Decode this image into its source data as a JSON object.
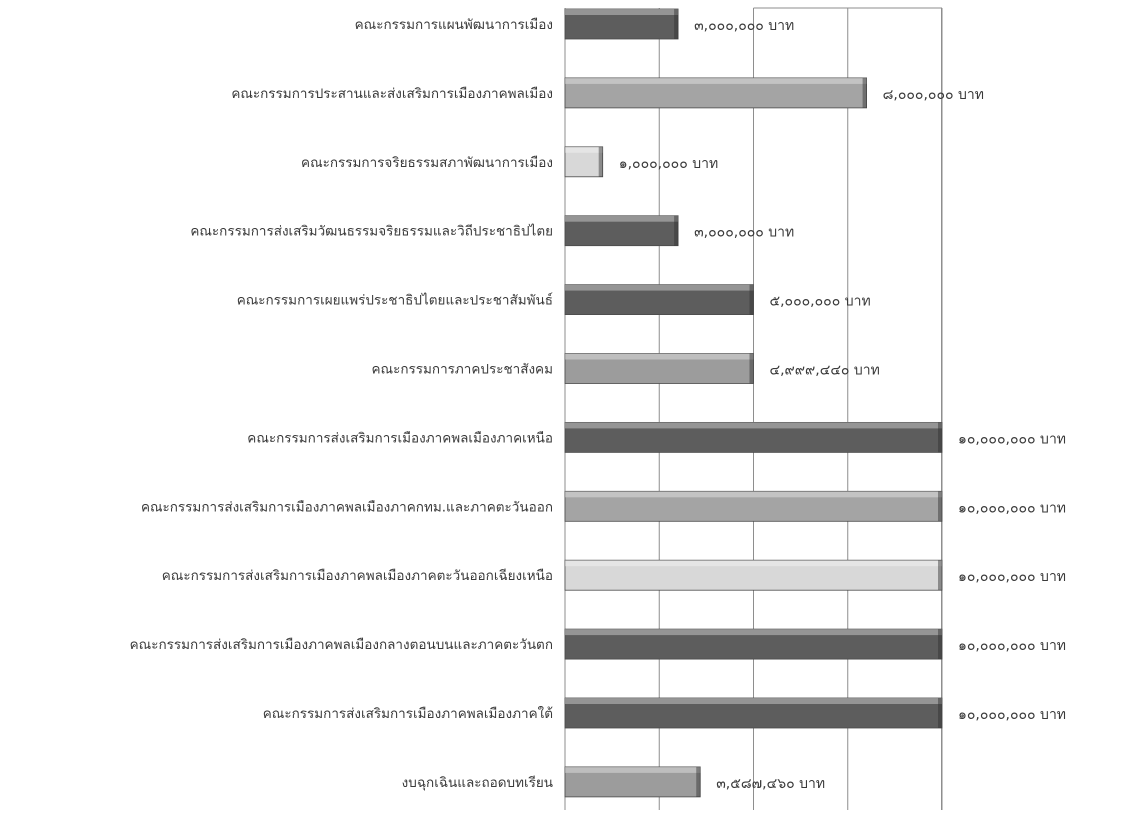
{
  "chart_data": {
    "type": "bar",
    "orientation": "horizontal",
    "title": "",
    "xlabel": "",
    "ylabel": "",
    "xlim": [
      0,
      10000000
    ],
    "grid": true,
    "legend": "none",
    "categories": [
      "คณะกรรมการแผนพัฒนาการเมือง",
      "คณะกรรมการประสานและส่งเสริมการเมืองภาคพลเมือง",
      "คณะกรรมการจริยธรรมสภาพัฒนาการเมือง",
      "คณะกรรมการส่งเสริมวัฒนธรรมจริยธรรมและวิถีประชาธิปไตย",
      "คณะกรรมการเผยแพร่ประชาธิปไตยและประชาสัมพันธ์",
      "คณะกรรมการภาคประชาสังคม",
      "คณะกรรมการส่งเสริมการเมืองภาคพลเมืองภาคเหนือ",
      "คณะกรรมการส่งเสริมการเมืองภาคพลเมืองภาคกทม.และภาคตะวันออก",
      "คณะกรรมการส่งเสริมการเมืองภาคพลเมืองภาคตะวันออกเฉียงเหนือ",
      "คณะกรรมการส่งเสริมการเมืองภาคพลเมืองกลางตอนบนและภาคตะวันตก",
      "คณะกรรมการส่งเสริมการเมืองภาคพลเมืองภาคใต้",
      "งบฉุกเฉินและถอดบทเรียน"
    ],
    "values": [
      3000000,
      8000000,
      1000000,
      3000000,
      5000000,
      4999440,
      10000000,
      10000000,
      10000000,
      10000000,
      10000000,
      3587460
    ],
    "value_labels": [
      "๓,๐๐๐,๐๐๐ บาท",
      "๘,๐๐๐,๐๐๐ บาท",
      "๑,๐๐๐,๐๐๐ บาท",
      "๓,๐๐๐,๐๐๐ บาท",
      "๕,๐๐๐,๐๐๐ บาท",
      "๔,๙๙๙,๔๔๐ บาท",
      "๑๐,๐๐๐,๐๐๐ บาท",
      "๑๐,๐๐๐,๐๐๐ บาท",
      "๑๐,๐๐๐,๐๐๐ บาท",
      "๑๐,๐๐๐,๐๐๐ บาท",
      "๑๐,๐๐๐,๐๐๐ บาท",
      "๓,๕๘๗,๔๖๐ บาท"
    ],
    "bar_colors": [
      "#5d5d5d",
      "#a4a4a4",
      "#d8d8d8",
      "#5d5d5d",
      "#5d5d5d",
      "#9c9c9c",
      "#5d5d5d",
      "#a4a4a4",
      "#d8d8d8",
      "#5d5d5d",
      "#5d5d5d",
      "#9c9c9c"
    ],
    "grid_color": "#8e8e8e",
    "text_color": "#3a3a3a"
  }
}
